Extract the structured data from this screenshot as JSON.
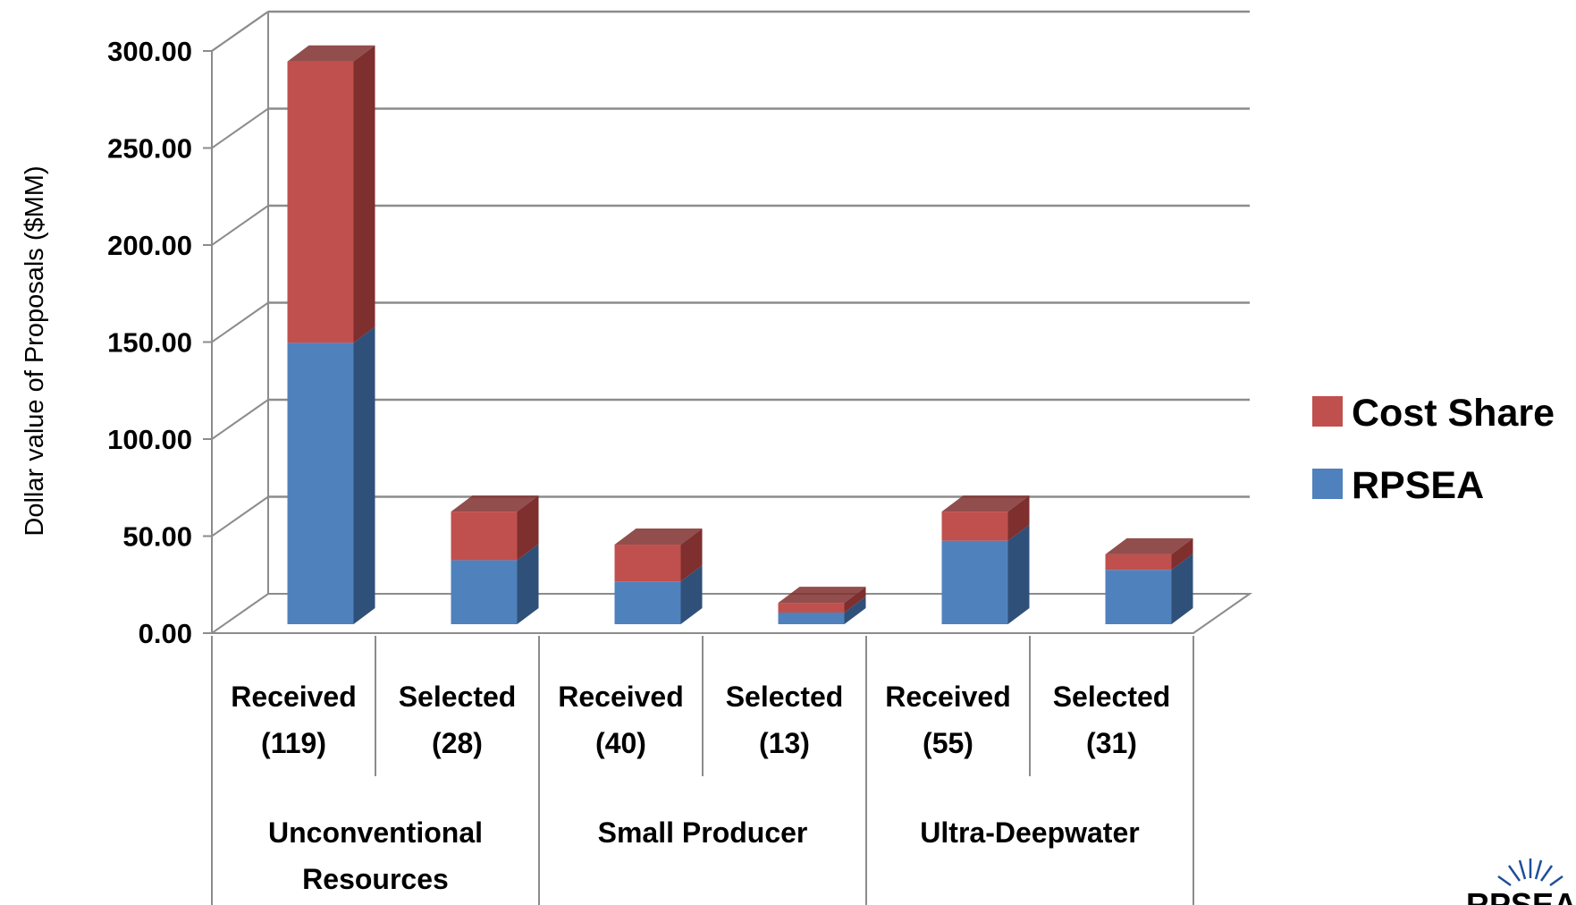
{
  "chart_data": {
    "type": "bar",
    "stacked": true,
    "three_d": true,
    "ylabel": "Dollar value of Proposals ($MM)",
    "ylim": [
      0,
      300
    ],
    "yticks": [
      "0.00",
      "50.00",
      "100.00",
      "150.00",
      "200.00",
      "250.00",
      "300.00"
    ],
    "grid": true,
    "legend_position": "right",
    "categories": [
      {
        "line1": "Received",
        "line2": "(119)"
      },
      {
        "line1": "Selected",
        "line2": "(28)"
      },
      {
        "line1": "Received",
        "line2": "(40)"
      },
      {
        "line1": "Selected",
        "line2": "(13)"
      },
      {
        "line1": "Received",
        "line2": "(55)"
      },
      {
        "line1": "Selected",
        "line2": "(31)"
      }
    ],
    "groups": [
      {
        "lines": [
          "Unconventional",
          "Resources"
        ],
        "span": 2
      },
      {
        "lines": [
          "Small Producer"
        ],
        "span": 2
      },
      {
        "lines": [
          "Ultra-Deepwater"
        ],
        "span": 2
      }
    ],
    "series": [
      {
        "name": "RPSEA",
        "color": "#4F81BD",
        "side": "#2F5079",
        "values": [
          145,
          33,
          22,
          6,
          43,
          28
        ]
      },
      {
        "name": "Cost Share",
        "color": "#C0504D",
        "side": "#7E2F2E",
        "values": [
          145,
          25,
          19,
          5,
          15,
          8
        ]
      }
    ]
  },
  "logo": {
    "text": "RPSEA"
  }
}
